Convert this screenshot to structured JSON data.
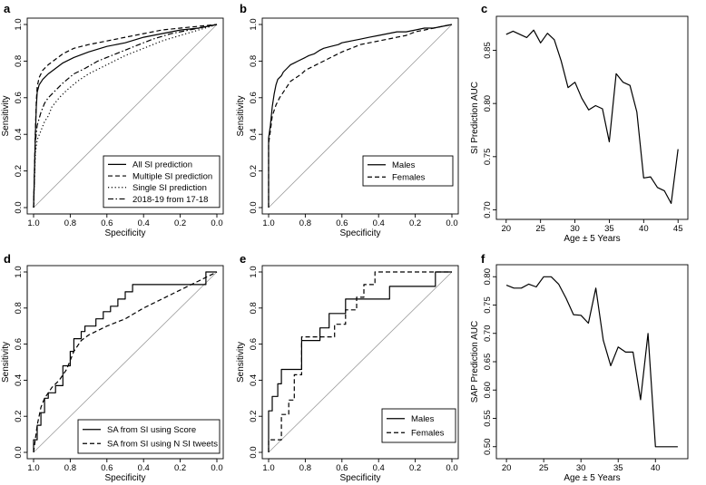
{
  "chart_data": [
    {
      "panel": "a",
      "type": "line",
      "xlabel": "Specificity",
      "ylabel": "Sensitivity",
      "xlim": [
        1.0,
        0.0
      ],
      "ylim": [
        0.0,
        1.0
      ],
      "x_ticks": [
        "1.0",
        "0.8",
        "0.6",
        "0.4",
        "0.2",
        "0.0"
      ],
      "y_ticks": [
        "0.0",
        "0.2",
        "0.4",
        "0.6",
        "0.8",
        "1.0"
      ],
      "diagonal": true,
      "legend_position": "bottom-right",
      "series": [
        {
          "name": "All SI prediction",
          "style": "solid",
          "x": [
            1.0,
            0.99,
            0.985,
            0.98,
            0.97,
            0.95,
            0.92,
            0.88,
            0.84,
            0.78,
            0.7,
            0.6,
            0.5,
            0.4,
            0.3,
            0.2,
            0.1,
            0.05,
            0.0
          ],
          "y": [
            0.0,
            0.4,
            0.55,
            0.63,
            0.67,
            0.7,
            0.73,
            0.76,
            0.79,
            0.82,
            0.85,
            0.88,
            0.9,
            0.93,
            0.95,
            0.97,
            0.98,
            0.99,
            1.0
          ]
        },
        {
          "name": "Multiple SI prediction",
          "style": "dashed",
          "x": [
            1.0,
            0.99,
            0.985,
            0.98,
            0.97,
            0.95,
            0.92,
            0.88,
            0.84,
            0.78,
            0.7,
            0.6,
            0.5,
            0.4,
            0.3,
            0.2,
            0.1,
            0.0
          ],
          "y": [
            0.0,
            0.42,
            0.58,
            0.66,
            0.71,
            0.75,
            0.78,
            0.81,
            0.84,
            0.87,
            0.89,
            0.91,
            0.93,
            0.95,
            0.97,
            0.98,
            0.99,
            1.0
          ]
        },
        {
          "name": "Single SI prediction",
          "style": "dotted",
          "x": [
            1.0,
            0.99,
            0.98,
            0.96,
            0.94,
            0.92,
            0.9,
            0.86,
            0.82,
            0.76,
            0.7,
            0.6,
            0.5,
            0.4,
            0.3,
            0.2,
            0.1,
            0.0
          ],
          "y": [
            0.0,
            0.3,
            0.37,
            0.42,
            0.47,
            0.5,
            0.55,
            0.6,
            0.64,
            0.69,
            0.73,
            0.78,
            0.83,
            0.87,
            0.91,
            0.94,
            0.97,
            1.0
          ]
        },
        {
          "name": "2018-19 from 17-18",
          "style": "dashdot",
          "x": [
            1.0,
            0.99,
            0.98,
            0.96,
            0.94,
            0.92,
            0.88,
            0.84,
            0.78,
            0.72,
            0.65,
            0.55,
            0.45,
            0.35,
            0.25,
            0.15,
            0.05,
            0.0
          ],
          "y": [
            0.0,
            0.36,
            0.45,
            0.52,
            0.57,
            0.6,
            0.64,
            0.68,
            0.73,
            0.76,
            0.8,
            0.84,
            0.88,
            0.92,
            0.95,
            0.97,
            0.99,
            1.0
          ]
        }
      ]
    },
    {
      "panel": "b",
      "type": "line",
      "xlabel": "Specificity",
      "ylabel": "Sensitivity",
      "xlim": [
        1.0,
        0.0
      ],
      "ylim": [
        0.0,
        1.0
      ],
      "x_ticks": [
        "1.0",
        "0.8",
        "0.6",
        "0.4",
        "0.2",
        "0.0"
      ],
      "y_ticks": [
        "0.0",
        "0.2",
        "0.4",
        "0.6",
        "0.8",
        "1.0"
      ],
      "diagonal": true,
      "legend_position": "bottom-right",
      "series": [
        {
          "name": "Males",
          "style": "solid",
          "x": [
            1.0,
            1.0,
            0.99,
            0.98,
            0.97,
            0.96,
            0.95,
            0.93,
            0.92,
            0.9,
            0.88,
            0.86,
            0.84,
            0.8,
            0.78,
            0.75,
            0.72,
            0.7,
            0.66,
            0.62,
            0.6,
            0.55,
            0.5,
            0.45,
            0.4,
            0.35,
            0.3,
            0.25,
            0.2,
            0.15,
            0.1,
            0.05,
            0.0
          ],
          "y": [
            0.0,
            0.38,
            0.45,
            0.55,
            0.62,
            0.67,
            0.7,
            0.72,
            0.74,
            0.76,
            0.78,
            0.79,
            0.8,
            0.82,
            0.83,
            0.84,
            0.86,
            0.87,
            0.88,
            0.89,
            0.9,
            0.91,
            0.92,
            0.93,
            0.94,
            0.95,
            0.96,
            0.96,
            0.97,
            0.98,
            0.98,
            0.99,
            1.0
          ]
        },
        {
          "name": "Females",
          "style": "dashed",
          "x": [
            1.0,
            1.0,
            0.99,
            0.98,
            0.96,
            0.94,
            0.92,
            0.9,
            0.88,
            0.85,
            0.82,
            0.8,
            0.76,
            0.72,
            0.68,
            0.64,
            0.6,
            0.55,
            0.5,
            0.45,
            0.4,
            0.35,
            0.3,
            0.25,
            0.2,
            0.15,
            0.1,
            0.05,
            0.0
          ],
          "y": [
            0.0,
            0.35,
            0.42,
            0.5,
            0.56,
            0.6,
            0.63,
            0.66,
            0.69,
            0.71,
            0.73,
            0.75,
            0.77,
            0.79,
            0.81,
            0.83,
            0.85,
            0.87,
            0.89,
            0.9,
            0.91,
            0.92,
            0.93,
            0.94,
            0.96,
            0.97,
            0.98,
            0.99,
            1.0
          ]
        }
      ]
    },
    {
      "panel": "c",
      "type": "line",
      "xlabel": "Age ± 5 Years",
      "ylabel": "SI Prediction AUC",
      "xlim": [
        19.5,
        45.5
      ],
      "ylim": [
        0.697,
        0.876
      ],
      "x_ticks": [
        "20",
        "25",
        "30",
        "35",
        "40",
        "45"
      ],
      "y_ticks": [
        "0.70",
        "0.75",
        "0.80",
        "0.85"
      ],
      "series": [
        {
          "name": "SI Prediction AUC",
          "style": "solid",
          "x": [
            20,
            21,
            22,
            23,
            24,
            25,
            26,
            27,
            28,
            29,
            30,
            31,
            32,
            33,
            34,
            35,
            36,
            37,
            38,
            39,
            40,
            41,
            42,
            43,
            44,
            45
          ],
          "y": [
            0.865,
            0.868,
            0.865,
            0.862,
            0.869,
            0.857,
            0.866,
            0.86,
            0.84,
            0.815,
            0.82,
            0.805,
            0.794,
            0.798,
            0.795,
            0.764,
            0.828,
            0.82,
            0.817,
            0.792,
            0.73,
            0.731,
            0.721,
            0.718,
            0.706,
            0.757
          ]
        }
      ]
    },
    {
      "panel": "d",
      "type": "line",
      "xlabel": "Specificity",
      "ylabel": "Sensitivity",
      "xlim": [
        1.0,
        0.0
      ],
      "ylim": [
        0.0,
        1.0
      ],
      "x_ticks": [
        "1.0",
        "0.8",
        "0.6",
        "0.4",
        "0.2",
        "0.0"
      ],
      "y_ticks": [
        "0.0",
        "0.2",
        "0.4",
        "0.6",
        "0.8",
        "1.0"
      ],
      "diagonal": true,
      "legend_position": "bottom-right",
      "series": [
        {
          "name": "SA from SI using Score",
          "style": "solid",
          "x": [
            1.0,
            1.0,
            0.98,
            0.98,
            0.96,
            0.96,
            0.94,
            0.94,
            0.92,
            0.92,
            0.88,
            0.88,
            0.84,
            0.84,
            0.8,
            0.8,
            0.78,
            0.78,
            0.74,
            0.74,
            0.72,
            0.72,
            0.66,
            0.66,
            0.62,
            0.62,
            0.58,
            0.58,
            0.54,
            0.54,
            0.5,
            0.5,
            0.46,
            0.46,
            0.06,
            0.06,
            0.0
          ],
          "y": [
            0.0,
            0.07,
            0.07,
            0.15,
            0.15,
            0.22,
            0.22,
            0.3,
            0.3,
            0.33,
            0.33,
            0.37,
            0.37,
            0.48,
            0.48,
            0.56,
            0.56,
            0.63,
            0.63,
            0.67,
            0.67,
            0.7,
            0.7,
            0.74,
            0.74,
            0.78,
            0.78,
            0.81,
            0.81,
            0.85,
            0.85,
            0.89,
            0.89,
            0.93,
            0.93,
            1.0,
            1.0
          ]
        },
        {
          "name": "SA from SI using N SI tweets",
          "style": "dashed",
          "x": [
            1.0,
            0.98,
            0.96,
            0.94,
            0.92,
            0.9,
            0.86,
            0.82,
            0.78,
            0.74,
            0.7,
            0.6,
            0.5,
            0.4,
            0.3,
            0.2,
            0.1,
            0.0
          ],
          "y": [
            0.0,
            0.15,
            0.25,
            0.3,
            0.33,
            0.36,
            0.4,
            0.46,
            0.56,
            0.62,
            0.65,
            0.7,
            0.74,
            0.8,
            0.85,
            0.9,
            0.95,
            1.0
          ]
        }
      ]
    },
    {
      "panel": "e",
      "type": "line",
      "xlabel": "Specificity",
      "ylabel": "Sensitivity",
      "xlim": [
        1.0,
        0.0
      ],
      "ylim": [
        0.0,
        1.0
      ],
      "x_ticks": [
        "1.0",
        "0.8",
        "0.6",
        "0.4",
        "0.2",
        "0.0"
      ],
      "y_ticks": [
        "0.0",
        "0.2",
        "0.4",
        "0.6",
        "0.8",
        "1.0"
      ],
      "diagonal": true,
      "legend_position": "bottom-right",
      "series": [
        {
          "name": "Males",
          "style": "solid",
          "x": [
            1.0,
            1.0,
            0.98,
            0.98,
            0.95,
            0.95,
            0.93,
            0.93,
            0.88,
            0.88,
            0.82,
            0.82,
            0.72,
            0.72,
            0.67,
            0.67,
            0.62,
            0.62,
            0.58,
            0.58,
            0.34,
            0.34,
            0.09,
            0.09,
            0.0
          ],
          "y": [
            0.0,
            0.23,
            0.23,
            0.31,
            0.31,
            0.38,
            0.38,
            0.46,
            0.46,
            0.46,
            0.46,
            0.62,
            0.62,
            0.69,
            0.69,
            0.77,
            0.77,
            0.77,
            0.77,
            0.85,
            0.85,
            0.92,
            0.92,
            1.0,
            1.0
          ]
        },
        {
          "name": "Females",
          "style": "dashed",
          "x": [
            1.0,
            1.0,
            0.93,
            0.93,
            0.89,
            0.89,
            0.86,
            0.86,
            0.82,
            0.82,
            0.74,
            0.74,
            0.64,
            0.64,
            0.58,
            0.58,
            0.52,
            0.52,
            0.48,
            0.48,
            0.42,
            0.42,
            0.0
          ],
          "y": [
            0.0,
            0.07,
            0.07,
            0.21,
            0.21,
            0.29,
            0.29,
            0.43,
            0.43,
            0.64,
            0.64,
            0.64,
            0.64,
            0.71,
            0.71,
            0.79,
            0.79,
            0.86,
            0.86,
            0.93,
            0.93,
            1.0,
            1.0
          ]
        }
      ]
    },
    {
      "panel": "f",
      "type": "line",
      "xlabel": "Age ± 5 Years",
      "ylabel": "SAP Prediction AUC",
      "xlim": [
        19.5,
        43.5
      ],
      "ylim": [
        0.49,
        0.81
      ],
      "x_ticks": [
        "20",
        "25",
        "30",
        "35",
        "40"
      ],
      "y_ticks": [
        "0.50",
        "0.55",
        "0.60",
        "0.65",
        "0.70",
        "0.75",
        "0.80"
      ],
      "series": [
        {
          "name": "SAP Prediction AUC",
          "style": "solid",
          "x": [
            20,
            21,
            22,
            23,
            24,
            25,
            26,
            27,
            28,
            29,
            30,
            31,
            32,
            33,
            34,
            35,
            36,
            37,
            38,
            39,
            40,
            41,
            42,
            43
          ],
          "y": [
            0.785,
            0.78,
            0.78,
            0.787,
            0.782,
            0.8,
            0.8,
            0.787,
            0.762,
            0.733,
            0.732,
            0.718,
            0.78,
            0.688,
            0.643,
            0.676,
            0.667,
            0.667,
            0.583,
            0.7,
            0.5,
            0.5,
            0.5,
            0.5
          ]
        }
      ]
    }
  ]
}
